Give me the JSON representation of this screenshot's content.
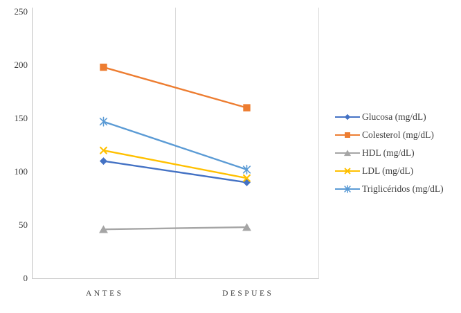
{
  "window": {
    "background": "#ffffff"
  },
  "chart_data": {
    "type": "line",
    "title": "",
    "xlabel": "",
    "ylabel": "",
    "categories": [
      "ANTES",
      "DESPUES"
    ],
    "series": [
      {
        "name": "Glucosa (mg/dL)",
        "marker": "diamond",
        "color": "#4472C4",
        "values": [
          110,
          90
        ]
      },
      {
        "name": "Colesterol (mg/dL)",
        "marker": "square",
        "color": "#ED7D31",
        "values": [
          198,
          160
        ]
      },
      {
        "name": "HDL (mg/dL)",
        "marker": "triangle",
        "color": "#A5A5A5",
        "values": [
          46,
          48
        ]
      },
      {
        "name": "LDL (mg/dL)",
        "marker": "x",
        "color": "#FFC000",
        "values": [
          120,
          94
        ]
      },
      {
        "name": "Triglicéridos (mg/dL)",
        "marker": "asterisk",
        "color": "#5B9BD5",
        "values": [
          147,
          102
        ]
      }
    ],
    "ylim": [
      0,
      250
    ],
    "yticks": [
      0,
      50,
      100,
      150,
      200,
      250
    ],
    "grid": false,
    "category_divider": true,
    "plot_right_border": true,
    "legend_position": "right",
    "axis_color": "#BFBFBF",
    "divider_color": "#D9D9D9",
    "text_color": "#3F3F3F"
  }
}
